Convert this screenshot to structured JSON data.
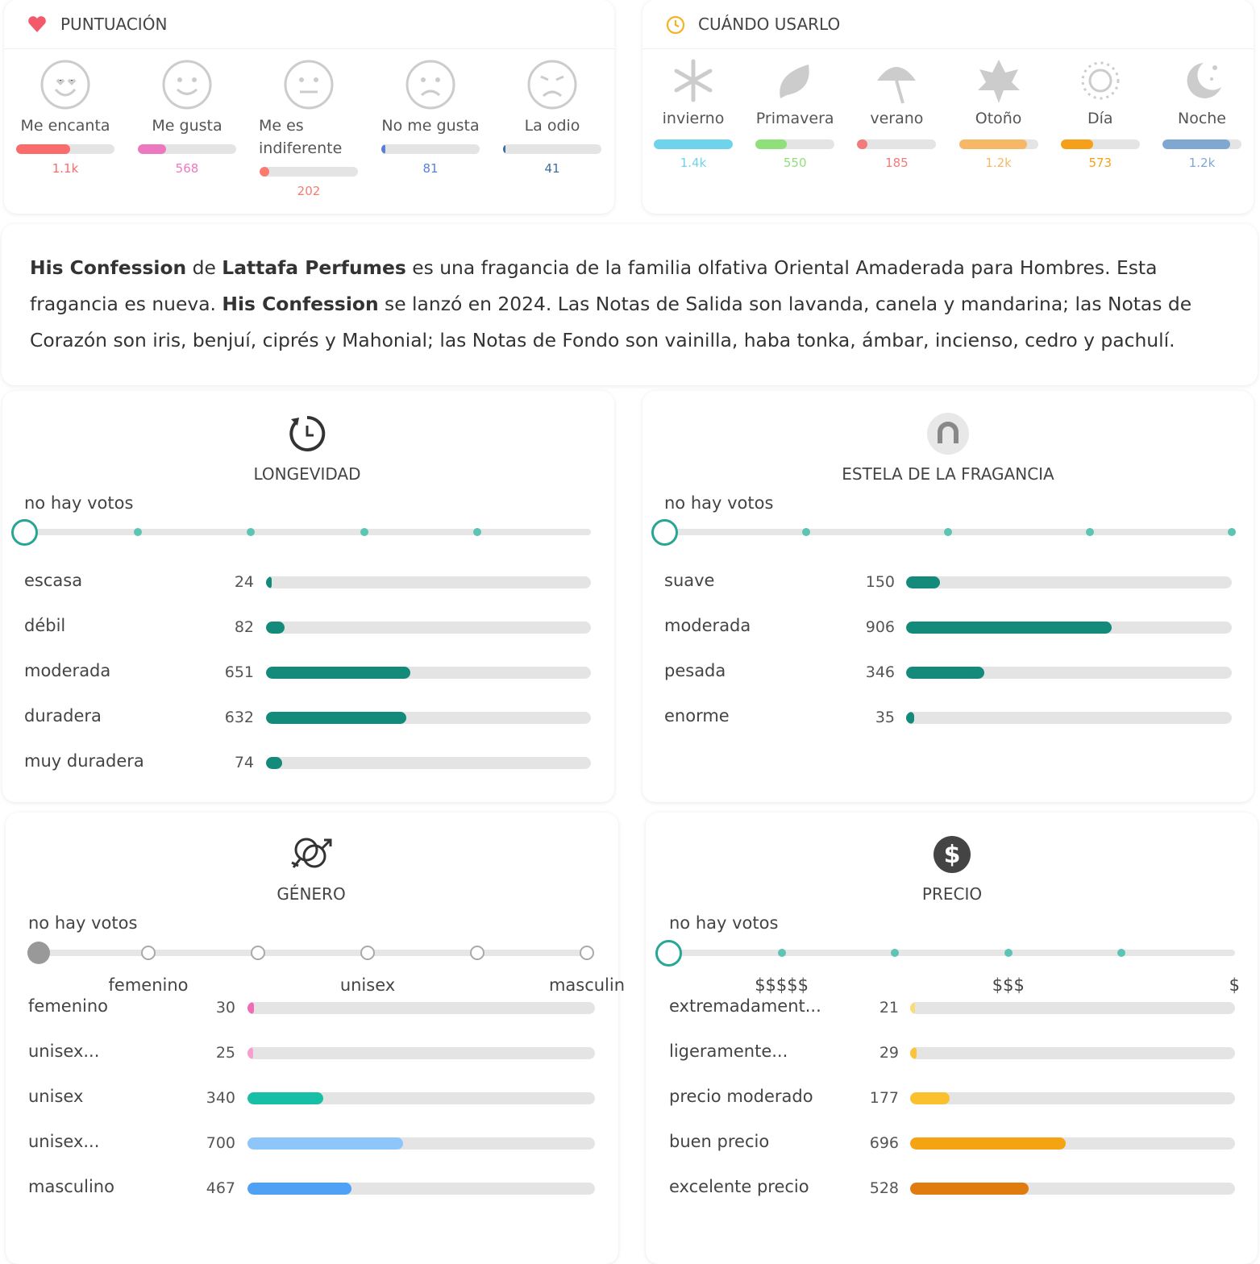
{
  "rating": {
    "title": "PUNTUACIÓN",
    "items": [
      {
        "label": "Me encanta",
        "count": 1100,
        "count_label": "1.1k",
        "color": "#fa6b6b"
      },
      {
        "label": "Me gusta",
        "count": 568,
        "color": "#ee78c0"
      },
      {
        "label": "Me es indiferente",
        "count": 202,
        "color": "#fa7a70"
      },
      {
        "label": "No me gusta",
        "count": 81,
        "color": "#5b7fd6"
      },
      {
        "label": "La odio",
        "count": 41,
        "color": "#3c6ea0"
      }
    ]
  },
  "when": {
    "title": "CUÁNDO USARLO",
    "items": [
      {
        "label": "invierno",
        "count": 1400,
        "count_label": "1.4k",
        "color": "#6fd3ec"
      },
      {
        "label": "Primavera",
        "count": 550,
        "color": "#8fe07a"
      },
      {
        "label": "verano",
        "count": 185,
        "color": "#f37a7a"
      },
      {
        "label": "Otoño",
        "count": 1200,
        "count_label": "1.2k",
        "color": "#f6b866"
      },
      {
        "label": "Día",
        "count": 573,
        "color": "#f5a01a"
      },
      {
        "label": "Noche",
        "count": 1200,
        "count_label": "1.2k",
        "color": "#7ea8d2"
      }
    ]
  },
  "description": [
    {
      "text": "His Confession",
      "bold": true
    },
    {
      "text": " de "
    },
    {
      "text": "Lattafa Perfumes",
      "bold": true
    },
    {
      "text": " es una fragancia de la familia olfativa Oriental Amaderada para Hombres. Esta fragancia es nueva. "
    },
    {
      "text": "His Confession",
      "bold": true
    },
    {
      "text": " se lanzó en 2024. Las Notas de Salida son lavanda, canela y mandarina; las Notas de Corazón son iris, benjuí, ciprés y Mahonial; las Notas de Fondo son vainilla, haba tonka, ámbar, incienso, cedro y pachulí."
    }
  ],
  "panels": [
    {
      "title": "LONGEVIDAD",
      "no_votes": "no hay votos",
      "rows": [
        {
          "label": "escasa",
          "count": 24,
          "color": "#138a7a"
        },
        {
          "label": "débil",
          "count": 82,
          "color": "#138a7a"
        },
        {
          "label": "moderada",
          "count": 651,
          "color": "#138a7a"
        },
        {
          "label": "duradera",
          "count": 632,
          "color": "#138a7a"
        },
        {
          "label": "muy duradera",
          "count": 74,
          "color": "#138a7a"
        }
      ]
    },
    {
      "title": "ESTELA DE LA FRAGANCIA",
      "no_votes": "no hay votos",
      "rows": [
        {
          "label": "suave",
          "count": 150,
          "color": "#138a7a"
        },
        {
          "label": "moderada",
          "count": 906,
          "color": "#138a7a"
        },
        {
          "label": "pesada",
          "count": 346,
          "color": "#138a7a"
        },
        {
          "label": "enorme",
          "count": 35,
          "color": "#138a7a"
        }
      ]
    },
    {
      "title": "GÉNERO",
      "no_votes": "no hay votos",
      "scale_labels": [
        "femenino",
        "unisex",
        "masculin"
      ],
      "rows": [
        {
          "label": "femenino",
          "count": 30,
          "color": "#f06bb5"
        },
        {
          "label": "unisex...",
          "count": 25,
          "color": "#f5a0cc"
        },
        {
          "label": "unisex",
          "count": 340,
          "color": "#17bfa6"
        },
        {
          "label": "unisex...",
          "count": 700,
          "color": "#8ec5fb"
        },
        {
          "label": "masculino",
          "count": 467,
          "color": "#4ea1f5"
        }
      ]
    },
    {
      "title": "PRECIO",
      "no_votes": "no hay votos",
      "scale_labels": [
        "$$$$$",
        "$$$",
        "$"
      ],
      "rows": [
        {
          "label": "extremadament...",
          "count": 21,
          "color": "#f9dc7a"
        },
        {
          "label": "ligeramente...",
          "count": 29,
          "color": "#fbc33a"
        },
        {
          "label": "precio moderado",
          "count": 177,
          "color": "#fbc02d"
        },
        {
          "label": "buen precio",
          "count": 696,
          "color": "#f5a313"
        },
        {
          "label": "excelente precio",
          "count": 528,
          "color": "#e07b0e"
        }
      ]
    }
  ]
}
